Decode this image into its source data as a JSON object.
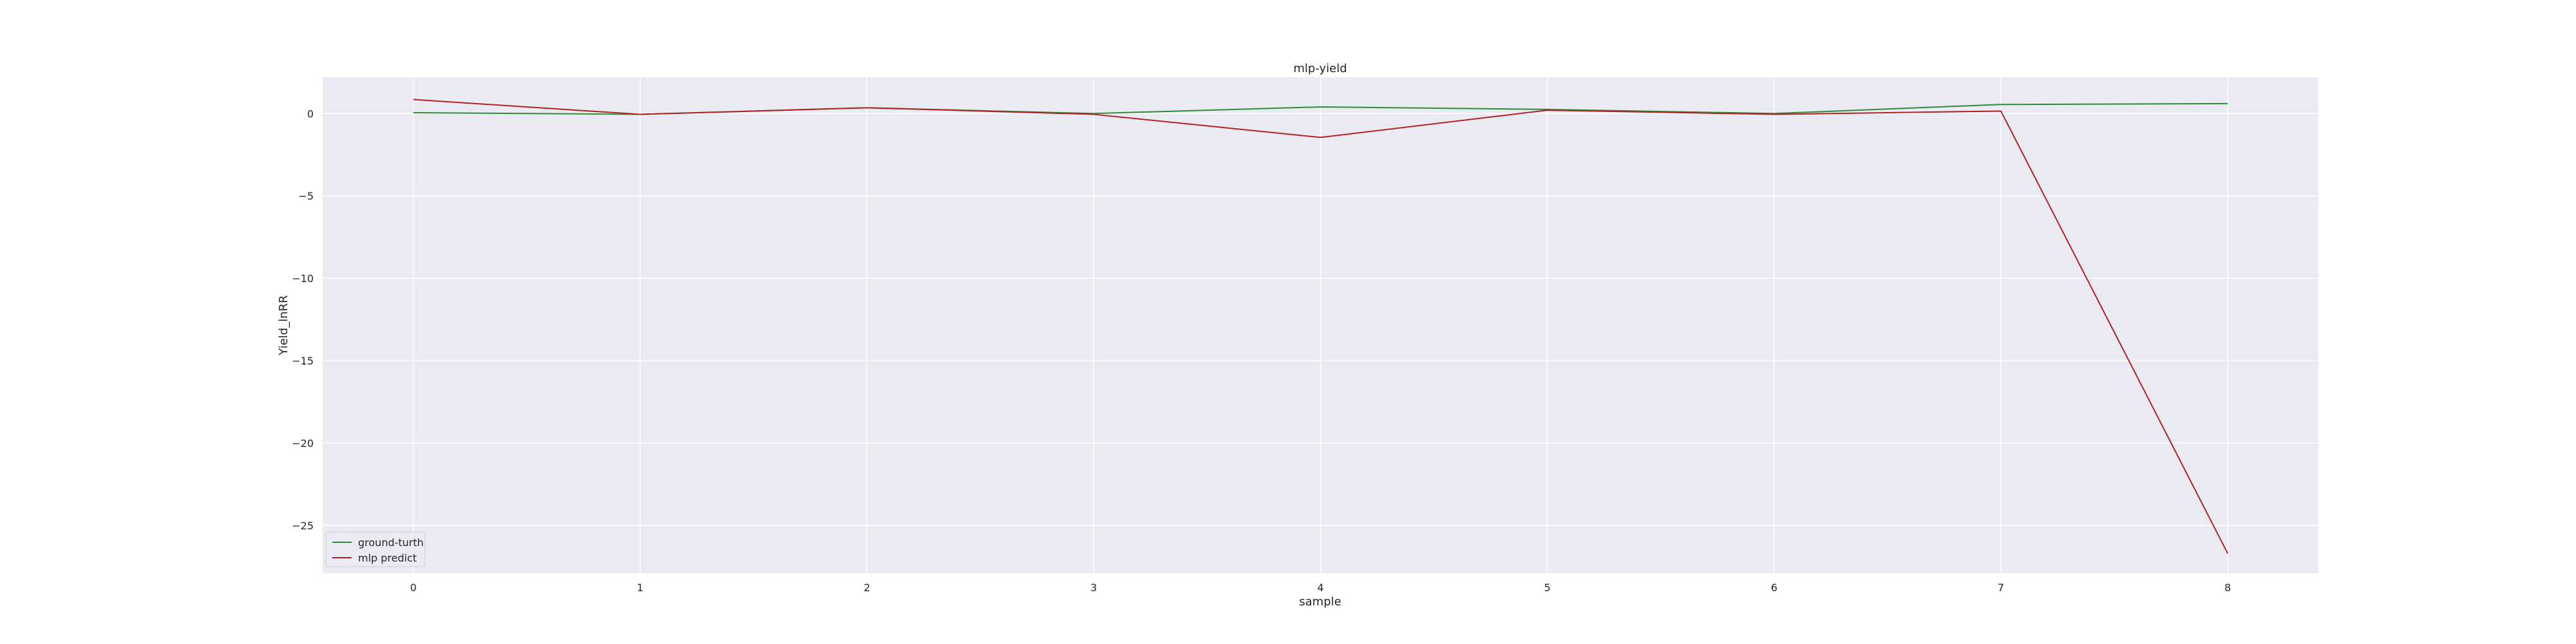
{
  "chart_data": {
    "type": "line",
    "title": "mlp-yield",
    "xlabel": "sample",
    "ylabel": "Yield_lnRR",
    "x": [
      0,
      1,
      2,
      3,
      4,
      5,
      6,
      7,
      8
    ],
    "xlim": [
      -0.4,
      8.4
    ],
    "ylim": [
      -27.9,
      2.2
    ],
    "yticks": [
      0,
      -5,
      -10,
      -15,
      -20,
      -25
    ],
    "yticks_labels": [
      "0",
      "−5",
      "−10",
      "−15",
      "−20",
      "−25"
    ],
    "xticks_labels": [
      "0",
      "1",
      "2",
      "3",
      "4",
      "5",
      "6",
      "7",
      "8"
    ],
    "grid": true,
    "legend_position": "lower-left",
    "background": "#eaeaf2",
    "series": [
      {
        "name": "ground-turth",
        "color": "#2e8b3a",
        "values": [
          0.05,
          -0.05,
          0.35,
          0.0,
          0.4,
          0.25,
          0.0,
          0.55,
          0.6
        ]
      },
      {
        "name": "mlp predict",
        "color": "#b22222",
        "values": [
          0.85,
          -0.05,
          0.35,
          -0.05,
          -1.45,
          0.2,
          -0.05,
          0.15,
          -26.7
        ]
      }
    ]
  }
}
